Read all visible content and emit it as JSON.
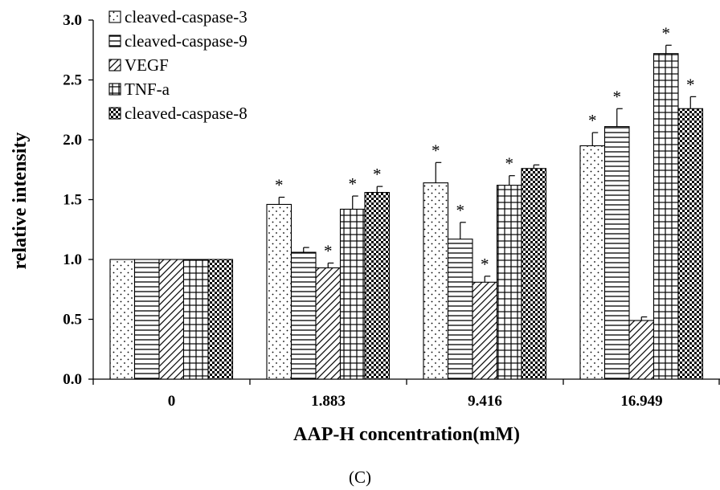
{
  "chart_data": {
    "type": "bar",
    "title": "",
    "xlabel": "AAP-H concentration(mM)",
    "ylabel": "relative intensity",
    "caption": "(C)",
    "categories": [
      "0",
      "1.883",
      "9.416",
      "16.949"
    ],
    "ylim": [
      0,
      3.0
    ],
    "yticks": [
      "0.0",
      "0.5",
      "1.0",
      "1.5",
      "2.0",
      "2.5",
      "3.0"
    ],
    "grid": false,
    "legend_position": "top-left",
    "series": [
      {
        "name": "cleaved-caspase-3",
        "pattern": "dots",
        "values": [
          1.0,
          1.46,
          1.64,
          1.95
        ],
        "errors": [
          0,
          0.06,
          0.17,
          0.11
        ],
        "significant": [
          false,
          true,
          true,
          true
        ]
      },
      {
        "name": "cleaved-caspase-9",
        "pattern": "horizontal-lines",
        "values": [
          1.0,
          1.06,
          1.17,
          2.11
        ],
        "errors": [
          0,
          0.04,
          0.14,
          0.15
        ],
        "significant": [
          false,
          false,
          true,
          true
        ]
      },
      {
        "name": "VEGF",
        "pattern": "diagonal-lines",
        "values": [
          1.0,
          0.93,
          0.81,
          0.49
        ],
        "errors": [
          0,
          0.04,
          0.05,
          0.03
        ],
        "significant": [
          false,
          true,
          true,
          false
        ]
      },
      {
        "name": "TNF-a",
        "pattern": "grid",
        "values": [
          1.0,
          1.42,
          1.62,
          2.72
        ],
        "errors": [
          0,
          0.11,
          0.08,
          0.07
        ],
        "significant": [
          false,
          true,
          true,
          true
        ]
      },
      {
        "name": "cleaved-caspase-8",
        "pattern": "checker",
        "values": [
          1.0,
          1.56,
          1.76,
          2.26
        ],
        "errors": [
          0,
          0.05,
          0.03,
          0.1
        ],
        "significant": [
          false,
          true,
          false,
          true
        ]
      }
    ],
    "significance_marker": "*"
  }
}
